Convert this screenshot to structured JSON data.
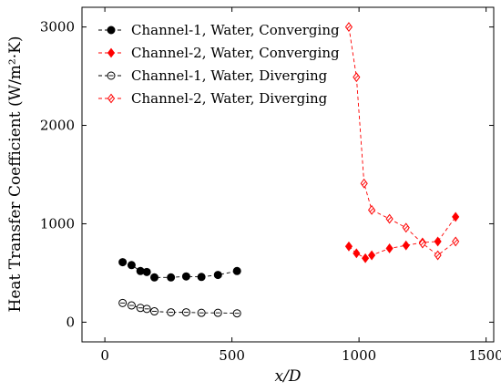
{
  "chart_data": {
    "type": "scatter",
    "title": "",
    "xlabel": "x/D",
    "ylabel": "Heat Transfer Coefficient (W/m²·K)",
    "xlim": [
      -90,
      1530
    ],
    "ylim": [
      -200,
      3200
    ],
    "xticks": [
      0,
      500,
      1000,
      1500
    ],
    "yticks": [
      0,
      1000,
      2000,
      3000
    ],
    "grid": false,
    "legend_position": "top-left",
    "series": [
      {
        "name": "Channel-1, Water, Converging",
        "color": "#000000",
        "marker": "filled-circle",
        "line": "dashed",
        "x": [
          70,
          105,
          140,
          165,
          195,
          260,
          320,
          380,
          445,
          520
        ],
        "y": [
          610,
          580,
          520,
          510,
          455,
          455,
          465,
          460,
          480,
          520
        ]
      },
      {
        "name": "Channel-2, Water, Converging",
        "color": "#ff0000",
        "marker": "filled-diamond",
        "line": "dashed",
        "x": [
          960,
          990,
          1025,
          1050,
          1120,
          1185,
          1250,
          1310,
          1380
        ],
        "y": [
          770,
          700,
          650,
          680,
          750,
          780,
          810,
          820,
          1070
        ]
      },
      {
        "name": "Channel-1, Water, Diverging",
        "color": "#000000",
        "marker": "open-circle",
        "line": "dashed",
        "x": [
          70,
          105,
          140,
          165,
          195,
          260,
          320,
          380,
          445,
          520
        ],
        "y": [
          195,
          170,
          145,
          135,
          110,
          100,
          100,
          95,
          95,
          90
        ]
      },
      {
        "name": "Channel-2, Water, Diverging",
        "color": "#ff0000",
        "marker": "open-diamond",
        "line": "dashed",
        "x": [
          960,
          990,
          1020,
          1050,
          1120,
          1185,
          1250,
          1310,
          1380
        ],
        "y": [
          3000,
          2490,
          1410,
          1140,
          1050,
          960,
          800,
          680,
          820
        ]
      }
    ]
  }
}
